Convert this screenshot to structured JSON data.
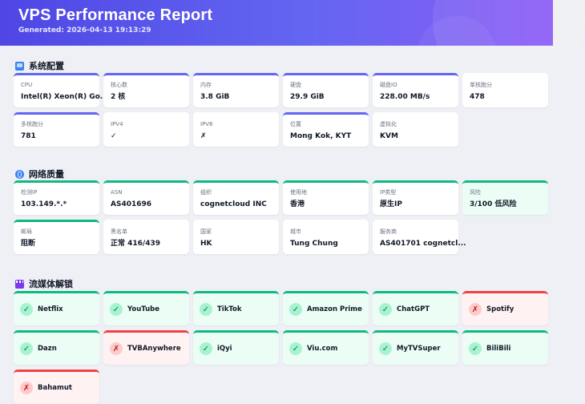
{
  "header": {
    "title": "VPS Performance Report",
    "generated": "Generated: 2026-04-13 19:13:29"
  },
  "system": {
    "title": "系统配置",
    "icon": "computer-icon",
    "items": [
      {
        "label": "CPU",
        "value": "Intel(R) Xeon(R) Go..."
      },
      {
        "label": "核心数",
        "value": "2 核"
      },
      {
        "label": "内存",
        "value": "3.8 GiB"
      },
      {
        "label": "硬盘",
        "value": "29.9 GiB"
      },
      {
        "label": "磁盘IO",
        "value": "228.00 MB/s"
      },
      {
        "label": "单核跑分",
        "value": "478"
      },
      {
        "label": "多核跑分",
        "value": "781"
      },
      {
        "label": "IPV4",
        "value": "✓"
      },
      {
        "label": "IPV6",
        "value": "✗"
      },
      {
        "label": "位置",
        "value": "Mong Kok, KYT"
      },
      {
        "label": "虚拟化",
        "value": "KVM"
      }
    ]
  },
  "network": {
    "title": "网络质量",
    "icon": "globe-icon",
    "items": [
      {
        "label": "检测IP",
        "value": "103.149.*.*"
      },
      {
        "label": "ASN",
        "value": "AS401696"
      },
      {
        "label": "组织",
        "value": "cognetcloud INC"
      },
      {
        "label": "使用地",
        "value": "香港"
      },
      {
        "label": "IP类型",
        "value": "原生IP"
      },
      {
        "label": "风险",
        "value": "3/100 低风险"
      },
      {
        "label": "邮局",
        "value": "阻断"
      },
      {
        "label": "黑名单",
        "value": "正常 416/439"
      },
      {
        "label": "国家",
        "value": "HK"
      },
      {
        "label": "城市",
        "value": "Tung Chung"
      },
      {
        "label": "服务商",
        "value": "AS401701 cognetcl..."
      }
    ]
  },
  "streaming": {
    "title": "流媒体解锁",
    "icon": "film-icon",
    "ok_mark": "✓",
    "fail_mark": "✗",
    "items": [
      {
        "name": "Netflix",
        "status": "ok"
      },
      {
        "name": "YouTube",
        "status": "ok"
      },
      {
        "name": "TikTok",
        "status": "ok"
      },
      {
        "name": "Amazon Prime",
        "status": "ok"
      },
      {
        "name": "ChatGPT",
        "status": "ok"
      },
      {
        "name": "Spotify",
        "status": "fail"
      },
      {
        "name": "Dazn",
        "status": "ok"
      },
      {
        "name": "TVBAnywhere",
        "status": "fail"
      },
      {
        "name": "iQyi",
        "status": "ok"
      },
      {
        "name": "Viu.com",
        "status": "ok"
      },
      {
        "name": "MyTVSuper",
        "status": "ok"
      },
      {
        "name": "BiliBili",
        "status": "ok"
      },
      {
        "name": "Bahamut",
        "status": "fail"
      }
    ]
  },
  "colors": {
    "header_start": "#4f46e5",
    "header_end": "#8b5cf6",
    "system_accent": "#6366f1",
    "success": "#10b981",
    "failure": "#ef4444"
  }
}
